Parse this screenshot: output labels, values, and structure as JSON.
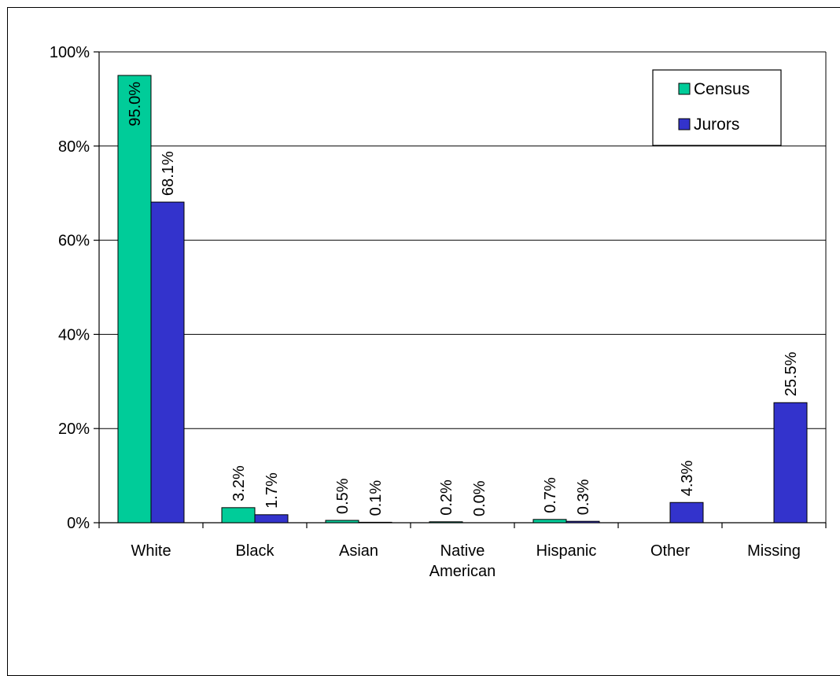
{
  "chart_data": {
    "type": "bar",
    "categories": [
      "White",
      "Black",
      "Asian",
      "Native American",
      "Hispanic",
      "Other",
      "Missing"
    ],
    "category_lines": [
      [
        "White"
      ],
      [
        "Black"
      ],
      [
        "Asian"
      ],
      [
        "Native",
        "American"
      ],
      [
        "Hispanic"
      ],
      [
        "Other"
      ],
      [
        "Missing"
      ]
    ],
    "series": [
      {
        "name": "Census",
        "color": "#00cc99",
        "values": [
          95.0,
          3.2,
          0.5,
          0.2,
          0.7,
          null,
          null
        ],
        "labels": [
          "95.0%",
          "3.2%",
          "0.5%",
          "0.2%",
          "0.7%",
          "",
          ""
        ]
      },
      {
        "name": "Jurors",
        "color": "#3333cc",
        "values": [
          68.1,
          1.7,
          0.1,
          0.0,
          0.3,
          4.3,
          25.5
        ],
        "labels": [
          "68.1%",
          "1.7%",
          "0.1%",
          "0.0%",
          "0.3%",
          "4.3%",
          "25.5%"
        ]
      }
    ],
    "ylim": [
      0,
      100
    ],
    "yticks": [
      0,
      20,
      40,
      60,
      80,
      100
    ],
    "ytick_labels": [
      "0%",
      "20%",
      "40%",
      "60%",
      "80%",
      "100%"
    ],
    "grid": true,
    "legend": "top-right",
    "title": "",
    "xlabel": "",
    "ylabel": ""
  }
}
